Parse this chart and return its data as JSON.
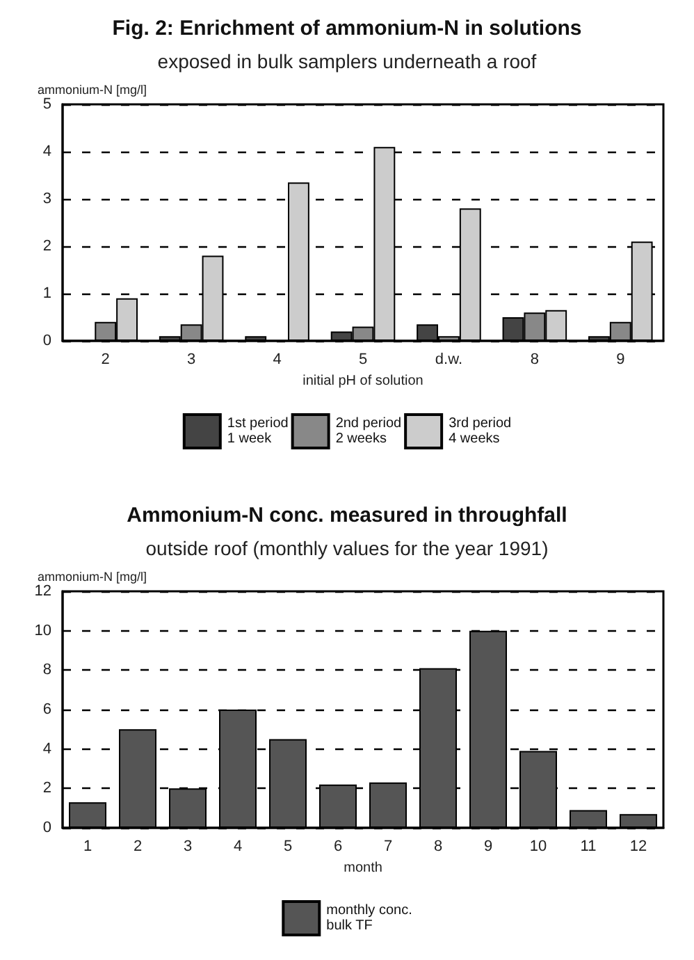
{
  "chart_data": [
    {
      "type": "bar",
      "title": "Fig. 2: Enrichment of ammonium-N in solutions",
      "subtitle": "exposed in bulk samplers underneath a roof",
      "ylabel": "ammonium-N [mg/l]",
      "xlabel": "initial pH of solution",
      "categories": [
        "2",
        "3",
        "4",
        "5",
        "d.w.",
        "8",
        "9"
      ],
      "series": [
        {
          "name": "1st period\n1 week",
          "color": "#444444",
          "values": [
            null,
            0.1,
            0.1,
            0.2,
            0.35,
            0.5,
            0.1
          ]
        },
        {
          "name": "2nd period\n2 weeks",
          "color": "#888888",
          "values": [
            0.4,
            0.35,
            null,
            0.3,
            0.1,
            0.6,
            0.4
          ]
        },
        {
          "name": "3rd period\n4 weeks",
          "color": "#cccccc",
          "values": [
            0.9,
            1.8,
            3.35,
            4.1,
            2.8,
            0.65,
            2.1
          ]
        }
      ],
      "ylim": [
        0,
        5
      ],
      "yticks": [
        0,
        1,
        2,
        3,
        4,
        5
      ],
      "grid": "y",
      "line_style": "dashed",
      "legend": "bottom"
    },
    {
      "type": "bar",
      "title": "Ammonium-N conc. measured in throughfall",
      "subtitle": "outside roof (monthly values for the year 1991)",
      "ylabel": "ammonium-N [mg/l]",
      "xlabel": "month",
      "categories": [
        "1",
        "2",
        "3",
        "4",
        "5",
        "6",
        "7",
        "8",
        "9",
        "10",
        "11",
        "12"
      ],
      "series": [
        {
          "name": "monthly conc.\nbulk TF",
          "color": "#555555",
          "values": [
            1.3,
            5.0,
            2.0,
            6.0,
            4.5,
            2.2,
            2.3,
            8.1,
            10.0,
            3.9,
            0.9,
            0.7
          ]
        }
      ],
      "ylim": [
        0,
        12
      ],
      "yticks": [
        0,
        2,
        4,
        6,
        8,
        10,
        12
      ],
      "grid": "y",
      "line_style": "dashed",
      "legend": "bottom"
    }
  ]
}
